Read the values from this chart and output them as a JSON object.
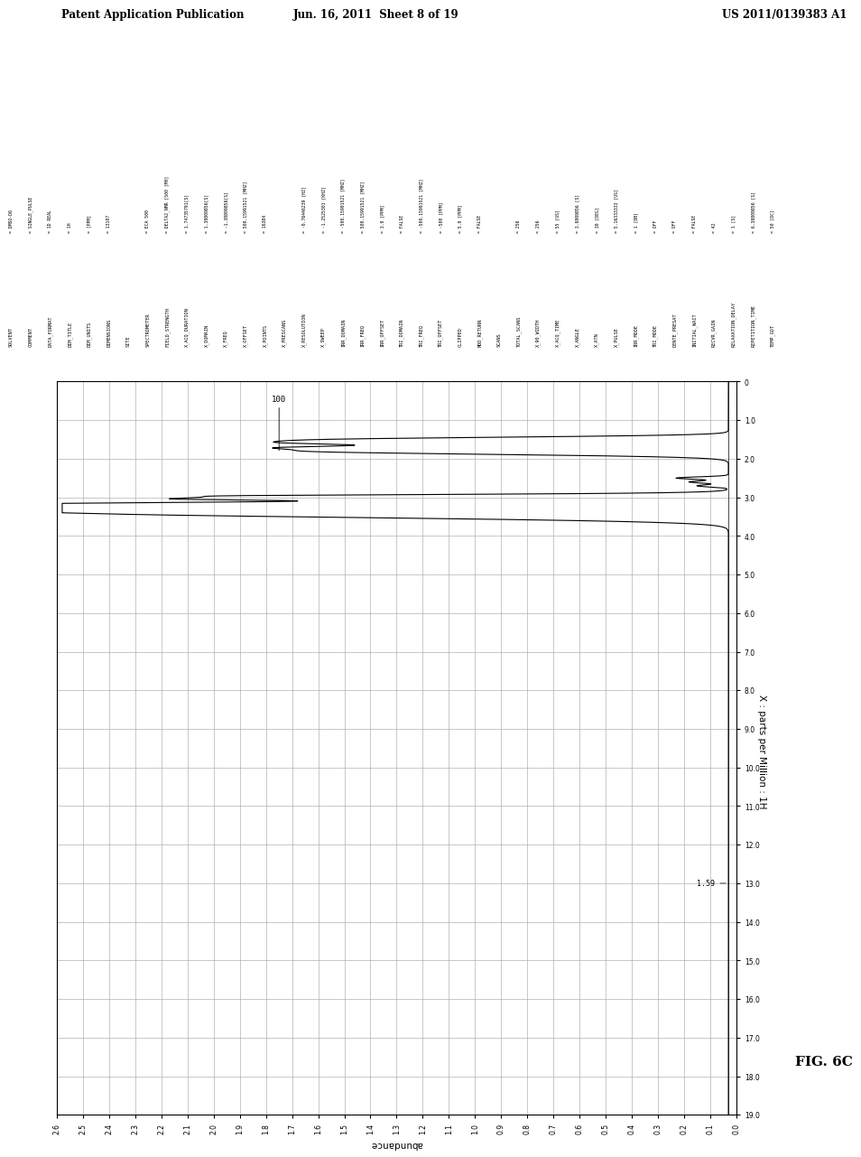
{
  "page_header_left": "Patent Application Publication",
  "page_header_mid": "Jun. 16, 2011  Sheet 8 of 19",
  "page_header_right": "US 2011/0139383 A1",
  "fig_label": "FIG. 6C",
  "ylabel_rotated": "X : parts per Million : 1H",
  "xlabel_rotated": "abundance",
  "x_min": 0.0,
  "x_max": 2.6,
  "y_min": 0.0,
  "y_max": 19.0,
  "x_ticks": [
    0.0,
    0.1,
    0.2,
    0.3,
    0.4,
    0.5,
    0.6,
    0.7,
    0.8,
    0.9,
    1.0,
    1.1,
    1.2,
    1.3,
    1.4,
    1.5,
    1.6,
    1.7,
    1.8,
    1.9,
    2.0,
    2.1,
    2.2,
    2.3,
    2.4,
    2.5,
    2.6
  ],
  "y_ticks": [
    0,
    1,
    2,
    3,
    4,
    5,
    6,
    7,
    8,
    9,
    10,
    11,
    12,
    13,
    14,
    15,
    16,
    17,
    18,
    19
  ],
  "background_color": "#ffffff",
  "grid_color": "#aaaaaa",
  "line_color": "#000000",
  "text_color": "#000000",
  "param_row1": [
    "SOLVENT",
    "COMMENT",
    "DATA_FORMAT",
    "DIM_TITLE",
    "DIM_UNITS",
    "DIMENSIONS",
    "SITE",
    "SPECTROMETER",
    "FIELD_STRENGTH",
    "X_ACQ_DURATION",
    "X_DOMAIN",
    "X_FREQ",
    "X_OFFSET",
    "X_POINTS",
    "X_PRESCANS",
    "X_RESOLUTION",
    "X_SWEEP",
    "IRR_DOMAIN",
    "IRR_FREQ",
    "IRR_OFFSET",
    "TRI_DOMAIN",
    "TRI_FREQ",
    "TRI_OFFSET",
    "CLIPPED",
    "MOD_RETURN",
    "SCANS",
    "TOTAL_SCANS",
    "X_90_WIDTH",
    "X_ACQ_TIME",
    "X_ANGLE",
    "X_ATN",
    "X_PULSE",
    "IRR_MODE",
    "TRI_MODE",
    "DENTE_PRESAT",
    "INITIAL_WAIT",
    "RECVR_GAIN",
    "RELAXATION_DELAY",
    "REPETITION_TIME",
    "TEMP_GOT"
  ],
  "param_row2": [
    "= DMSO-D6",
    "= SINGLE_PULSE",
    "= 1D REAL",
    "= 1H",
    "= [PPM]",
    "= 13107",
    "",
    "= ECA 500",
    "= DELTA2_NMR [500 [MH]",
    "= 1.74735791[S]",
    "= 1.30809856[S]",
    "= -1.30809856[S]",
    "= 500.15991521 [MHZ]",
    "= 16384",
    "",
    "= -0.76446239 [HZ]",
    "= -1.2525301 [KHZ]",
    "= -500.15991521 [MHZ]",
    "= 500.15991521 [MHZ]",
    "= 3.0 [PPM]",
    "= FALSE",
    "= -500.15991521 [MHZ]",
    "= -500 [PPM]",
    "= 5.0 [PPM]",
    "= FALSE",
    "",
    "= 256",
    "= 256",
    "= 55 [US]",
    "= 3.0809856 [S]",
    "= 30 [DEG]",
    "= 5.16333333 [US]",
    "= 1 [DB]",
    "= OFF",
    "= OFF",
    "= FALSE",
    "= 42",
    "= 1 [S]",
    "= 6.30809856 [S]",
    "= 50 [DC]"
  ]
}
